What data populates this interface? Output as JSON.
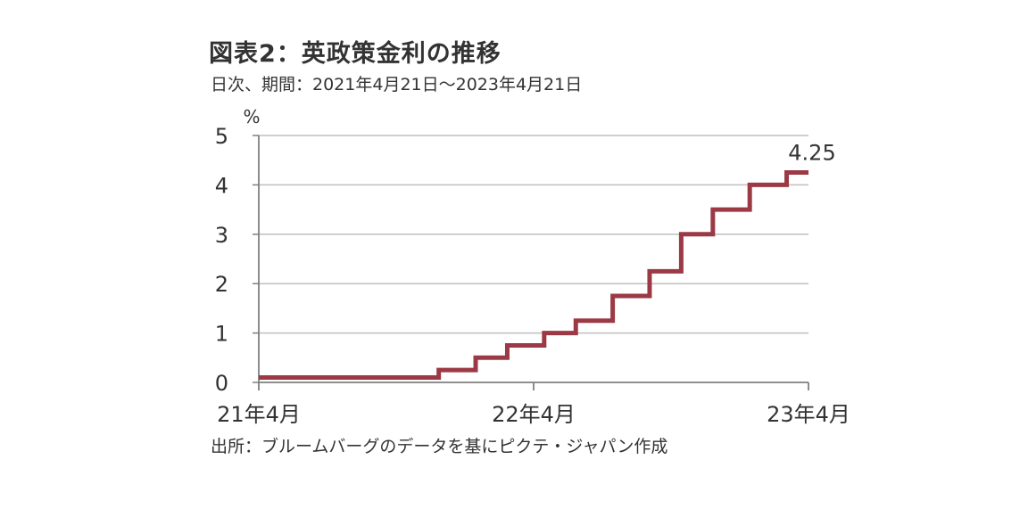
{
  "title": "図表2：英政策金利の推移",
  "subtitle": "日次、期間：2021年4月21日～2023年4月21日",
  "source": "出所：ブルームバーグのデータを基にピクテ・ジャパン作成",
  "colors": {
    "line": "#9b3a45",
    "grid": "#bfbfbf",
    "axis": "#7f7f7f",
    "text": "#333333"
  },
  "chart_data": {
    "type": "line",
    "step": true,
    "ylabel": "%",
    "ylim": [
      0,
      5
    ],
    "yticks": [
      "0",
      "1",
      "2",
      "3",
      "4",
      "5"
    ],
    "xlim": [
      "2021-04-21",
      "2023-04-21"
    ],
    "xticks": [
      {
        "label": "21年4月",
        "date": "2021-04-21"
      },
      {
        "label": "22年4月",
        "date": "2022-04-21"
      },
      {
        "label": "23年4月",
        "date": "2023-04-21"
      }
    ],
    "grid": true,
    "series": [
      {
        "points": [
          {
            "date": "2021-04-21",
            "value": 0.1
          },
          {
            "date": "2021-12-16",
            "value": 0.25
          },
          {
            "date": "2022-02-03",
            "value": 0.5
          },
          {
            "date": "2022-03-17",
            "value": 0.75
          },
          {
            "date": "2022-05-05",
            "value": 1.0
          },
          {
            "date": "2022-06-16",
            "value": 1.25
          },
          {
            "date": "2022-08-04",
            "value": 1.75
          },
          {
            "date": "2022-09-22",
            "value": 2.25
          },
          {
            "date": "2022-11-03",
            "value": 3.0
          },
          {
            "date": "2022-12-15",
            "value": 3.5
          },
          {
            "date": "2023-02-02",
            "value": 4.0
          },
          {
            "date": "2023-03-23",
            "value": 4.25
          },
          {
            "date": "2023-04-21",
            "value": 4.25
          }
        ]
      }
    ],
    "annotations": [
      {
        "text": "4.25",
        "date": "2023-04-21",
        "value": 4.25
      }
    ]
  }
}
